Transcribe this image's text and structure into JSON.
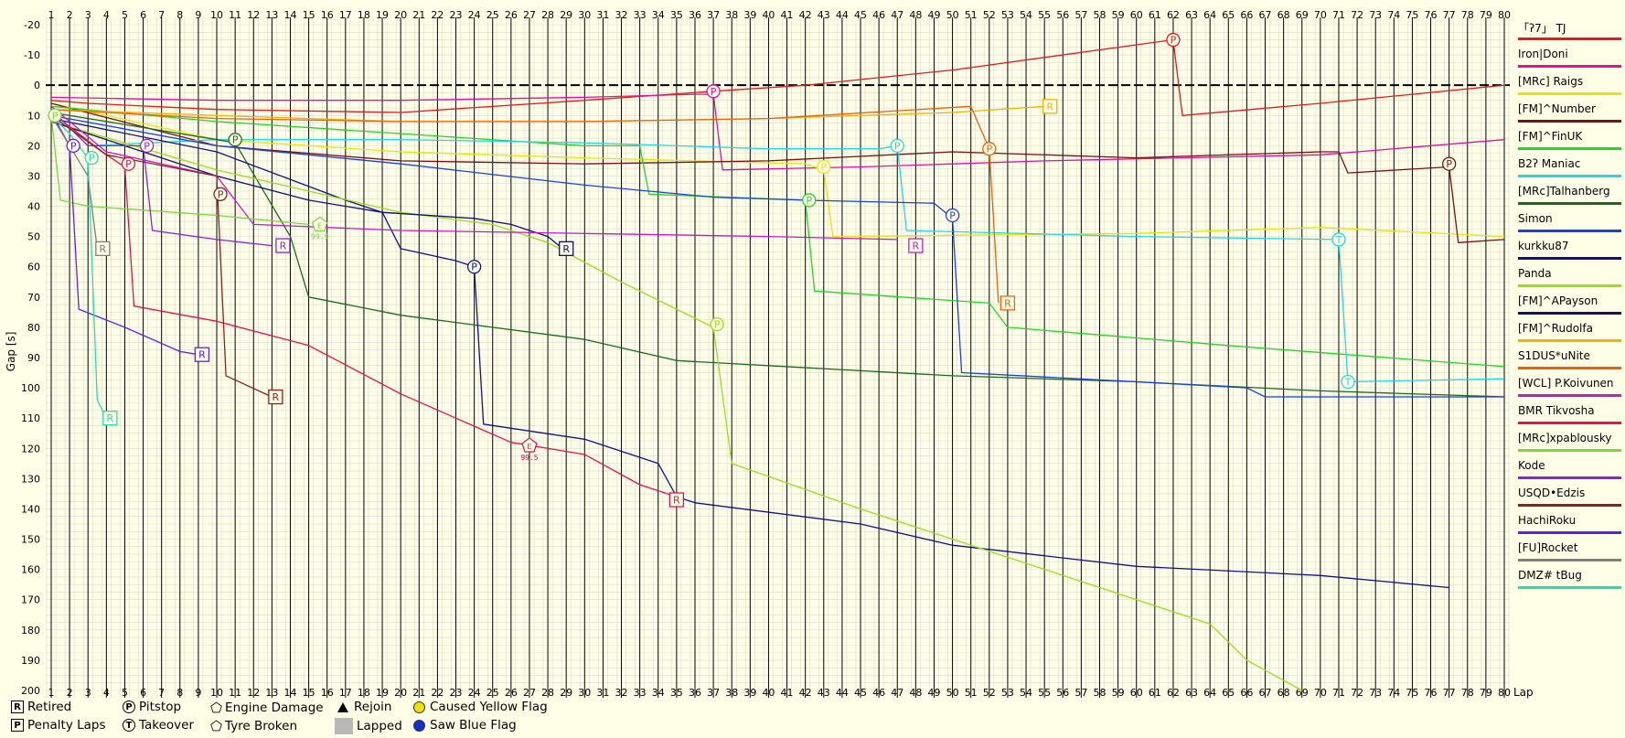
{
  "chart_data": {
    "type": "line",
    "ylabel": "Gap [s]",
    "xlabel": "Lap",
    "xlim": [
      1,
      80
    ],
    "ylim": [
      -20,
      200
    ],
    "y_ticks": [
      -20,
      -10,
      0,
      10,
      20,
      30,
      40,
      50,
      60,
      70,
      80,
      90,
      100,
      110,
      120,
      130,
      140,
      150,
      160,
      170,
      180,
      190,
      200
    ],
    "x_ticks": [
      1,
      2,
      3,
      4,
      5,
      6,
      7,
      8,
      9,
      10,
      11,
      12,
      13,
      14,
      15,
      16,
      17,
      18,
      19,
      20,
      21,
      22,
      23,
      24,
      25,
      26,
      27,
      28,
      29,
      30,
      31,
      32,
      33,
      34,
      35,
      36,
      37,
      38,
      39,
      40,
      41,
      42,
      43,
      44,
      45,
      46,
      47,
      48,
      49,
      50,
      51,
      52,
      53,
      54,
      55,
      56,
      57,
      58,
      59,
      60,
      61,
      62,
      63,
      64,
      65,
      66,
      67,
      68,
      69,
      70,
      71,
      72,
      73,
      74,
      75,
      76,
      77,
      78,
      79,
      80
    ],
    "y_inverted": true,
    "grid": true,
    "legend_position": "right",
    "series": [
      {
        "name": "「ʔ7」 TJ",
        "color": "#e31a1c",
        "points": [
          [
            1,
            5
          ],
          [
            3,
            6
          ],
          [
            10,
            8
          ],
          [
            20,
            9
          ],
          [
            30,
            5
          ],
          [
            37,
            2
          ],
          [
            42,
            0
          ],
          [
            50,
            -5
          ],
          [
            62,
            -15
          ],
          [
            62.5,
            10
          ],
          [
            70,
            6
          ],
          [
            80,
            0
          ]
        ]
      },
      {
        "name": "Iron|Doni",
        "color": "#e0109f",
        "points": [
          [
            1,
            4
          ],
          [
            10,
            5
          ],
          [
            20,
            5
          ],
          [
            30,
            4
          ],
          [
            36,
            3
          ],
          [
            37,
            3
          ],
          [
            37.5,
            28
          ],
          [
            45,
            27
          ],
          [
            55,
            25
          ],
          [
            70,
            23
          ],
          [
            80,
            18
          ]
        ]
      },
      {
        "name": "[MRc] Raigs",
        "color": "#e6e600",
        "points": [
          [
            1,
            6
          ],
          [
            10,
            18
          ],
          [
            20,
            22
          ],
          [
            30,
            24
          ],
          [
            42,
            26
          ],
          [
            43,
            28
          ],
          [
            43.5,
            50
          ],
          [
            60,
            49
          ],
          [
            70,
            47
          ],
          [
            80,
            50
          ]
        ]
      },
      {
        "name": "[FM]^Number",
        "color": "#7a1010",
        "points": [
          [
            1,
            6
          ],
          [
            10,
            20
          ],
          [
            20,
            25
          ],
          [
            30,
            26
          ],
          [
            40,
            25
          ],
          [
            50,
            22
          ],
          [
            60,
            24
          ],
          [
            70,
            22
          ],
          [
            71,
            22
          ],
          [
            71.5,
            29
          ],
          [
            77,
            27
          ],
          [
            77.5,
            52
          ],
          [
            80,
            51
          ]
        ]
      },
      {
        "name": "[FM]^FinUK",
        "color": "#20d820",
        "points": [
          [
            1,
            7
          ],
          [
            10,
            12
          ],
          [
            20,
            16
          ],
          [
            30,
            20
          ],
          [
            33,
            20
          ],
          [
            33.5,
            36
          ],
          [
            42,
            38
          ],
          [
            42.5,
            68
          ],
          [
            52,
            72
          ],
          [
            53,
            80
          ],
          [
            65,
            86
          ],
          [
            80,
            93
          ]
        ]
      },
      {
        "name": "B2ʔ Maniac",
        "color": "#20d8e8",
        "points": [
          [
            1,
            8
          ],
          [
            3,
            20
          ],
          [
            10,
            18
          ],
          [
            20,
            18
          ],
          [
            30,
            19
          ],
          [
            40,
            21
          ],
          [
            46,
            21
          ],
          [
            47,
            20
          ],
          [
            47.5,
            48
          ],
          [
            60,
            50
          ],
          [
            71,
            51
          ],
          [
            71.5,
            98
          ],
          [
            80,
            97
          ]
        ]
      },
      {
        "name": "[MRc]Talhanberg",
        "color": "#1a6a1a",
        "points": [
          [
            1,
            9
          ],
          [
            10,
            18
          ],
          [
            11,
            19
          ],
          [
            14,
            50
          ],
          [
            15,
            70
          ],
          [
            20,
            76
          ],
          [
            30,
            84
          ],
          [
            35,
            91
          ],
          [
            50,
            96
          ],
          [
            60,
            98
          ],
          [
            70,
            101
          ],
          [
            80,
            103
          ]
        ]
      },
      {
        "name": "Simon",
        "color": "#1840e8",
        "points": [
          [
            1,
            10
          ],
          [
            10,
            20
          ],
          [
            20,
            26
          ],
          [
            30,
            33
          ],
          [
            37,
            37
          ],
          [
            42,
            38
          ],
          [
            49,
            39
          ],
          [
            50,
            44
          ],
          [
            50.5,
            95
          ],
          [
            60,
            98
          ],
          [
            66,
            100
          ],
          [
            67,
            103
          ],
          [
            80,
            103
          ]
        ]
      },
      {
        "name": "kurkku87",
        "color": "#10108a",
        "points": [
          [
            1,
            11
          ],
          [
            10,
            22
          ],
          [
            17,
            38
          ],
          [
            19,
            42
          ],
          [
            20,
            54
          ],
          [
            23,
            58
          ],
          [
            24,
            60
          ],
          [
            24.5,
            112
          ],
          [
            30,
            117
          ],
          [
            34,
            125
          ],
          [
            35,
            136
          ],
          [
            36,
            138
          ],
          [
            45,
            145
          ],
          [
            50,
            152
          ],
          [
            60,
            159
          ],
          [
            70,
            162
          ],
          [
            77,
            166
          ]
        ]
      },
      {
        "name": "Panda",
        "color": "#98e010",
        "points": [
          [
            1,
            12
          ],
          [
            10,
            28
          ],
          [
            20,
            42
          ],
          [
            25,
            46
          ],
          [
            28,
            52
          ],
          [
            32,
            65
          ],
          [
            37,
            80
          ],
          [
            38,
            125
          ],
          [
            45,
            140
          ],
          [
            55,
            160
          ],
          [
            64,
            178
          ],
          [
            66,
            190
          ],
          [
            69,
            200
          ]
        ]
      },
      {
        "name": "[FM]^APayson",
        "color": "#101070",
        "points": [
          [
            1,
            12
          ],
          [
            10,
            30
          ],
          [
            15,
            38
          ],
          [
            19,
            42
          ],
          [
            24,
            44
          ],
          [
            26,
            46
          ],
          [
            28,
            50
          ],
          [
            29,
            55
          ]
        ]
      },
      {
        "name": "[FM]^Rudolfa",
        "color": "#f0b400",
        "points": [
          [
            1,
            8
          ],
          [
            10,
            10
          ],
          [
            20,
            12
          ],
          [
            30,
            12
          ],
          [
            40,
            11
          ],
          [
            50,
            9
          ],
          [
            55,
            7
          ]
        ]
      },
      {
        "name": "S1DUS*uNite",
        "color": "#f06000",
        "points": [
          [
            1,
            8
          ],
          [
            10,
            11
          ],
          [
            20,
            12
          ],
          [
            30,
            12
          ],
          [
            40,
            11
          ],
          [
            51,
            7
          ],
          [
            52,
            21
          ],
          [
            52.5,
            72
          ]
        ]
      },
      {
        "name": "[WCL] P.Koivunen",
        "color": "#c818c8",
        "points": [
          [
            1,
            7
          ],
          [
            4,
            22
          ],
          [
            10,
            30
          ],
          [
            12,
            46
          ],
          [
            20,
            48
          ],
          [
            30,
            49
          ],
          [
            40,
            50
          ],
          [
            47,
            51
          ]
        ]
      },
      {
        "name": "BMR Tikvosha",
        "color": "#e8104e",
        "points": [
          [
            1,
            9
          ],
          [
            4,
            23
          ],
          [
            5,
            27
          ],
          [
            5.5,
            73
          ],
          [
            10,
            78
          ],
          [
            15,
            86
          ],
          [
            20,
            102
          ],
          [
            26,
            118
          ],
          [
            30,
            122
          ],
          [
            33,
            132
          ],
          [
            35,
            136
          ]
        ]
      },
      {
        "name": "[MRc]xpablousky",
        "color": "#78d838",
        "points": [
          [
            1,
            10
          ],
          [
            1.5,
            38
          ],
          [
            3,
            40
          ],
          [
            10,
            43
          ],
          [
            15,
            46
          ]
        ]
      },
      {
        "name": "Kode",
        "color": "#9020d8",
        "points": [
          [
            1,
            8
          ],
          [
            3,
            20
          ],
          [
            6,
            20
          ],
          [
            6.5,
            48
          ],
          [
            10,
            51
          ],
          [
            13,
            53
          ]
        ]
      },
      {
        "name": "USQD•Edzis",
        "color": "#8a2020",
        "points": [
          [
            1,
            10
          ],
          [
            4,
            23
          ],
          [
            10,
            30
          ],
          [
            10.5,
            96
          ],
          [
            13,
            103
          ]
        ]
      },
      {
        "name": "HachiRoku",
        "color": "#6020e0",
        "points": [
          [
            1,
            9
          ],
          [
            2,
            20
          ],
          [
            2.5,
            74
          ],
          [
            5,
            80
          ],
          [
            8,
            88
          ],
          [
            9,
            89
          ]
        ]
      },
      {
        "name": "[FU]Rocket",
        "color": "#808080",
        "points": [
          [
            1,
            10
          ],
          [
            2,
            20
          ],
          [
            3,
            30
          ],
          [
            3.5,
            54
          ]
        ]
      },
      {
        "name": "DMZ# tBug",
        "color": "#20e0b0",
        "points": [
          [
            1,
            10
          ],
          [
            2,
            16
          ],
          [
            3,
            24
          ],
          [
            3.5,
            104
          ],
          [
            4,
            110
          ]
        ]
      }
    ],
    "markers": [
      {
        "type": "P",
        "shape": "circle",
        "x": 62,
        "y": -15,
        "series": "「ʔ7」 TJ"
      },
      {
        "type": "P",
        "shape": "circle",
        "x": 37,
        "y": 2,
        "series": "Iron|Doni"
      },
      {
        "type": "P",
        "shape": "circle",
        "x": 11,
        "y": 18,
        "series": "[MRc]Talhanberg"
      },
      {
        "type": "P",
        "shape": "circle",
        "x": 1.2,
        "y": 10,
        "series": "[MRc]xpablousky"
      },
      {
        "type": "P",
        "shape": "circle",
        "x": 2.2,
        "y": 20,
        "series": "HachiRoku"
      },
      {
        "type": "P",
        "shape": "circle",
        "x": 3.2,
        "y": 24,
        "series": "DMZ# tBug"
      },
      {
        "type": "P",
        "shape": "circle",
        "x": 5.2,
        "y": 26,
        "series": "BMR Tikvosha"
      },
      {
        "type": "P",
        "shape": "circle",
        "x": 6.2,
        "y": 20,
        "series": "Kode"
      },
      {
        "type": "P",
        "shape": "circle",
        "x": 10.2,
        "y": 36,
        "series": "USQD•Edzis"
      },
      {
        "type": "P",
        "shape": "circle",
        "x": 24,
        "y": 60,
        "series": "kurkku87"
      },
      {
        "type": "P",
        "shape": "circle",
        "x": 37.2,
        "y": 79,
        "series": "Panda"
      },
      {
        "type": "P",
        "shape": "circle",
        "x": 42.2,
        "y": 38,
        "series": "[FM]^FinUK"
      },
      {
        "type": "P",
        "shape": "circle",
        "x": 47,
        "y": 20,
        "series": "B2ʔ Maniac"
      },
      {
        "type": "P",
        "shape": "circle",
        "x": 50,
        "y": 43,
        "series": "Simon"
      },
      {
        "type": "P",
        "shape": "circle",
        "x": 52,
        "y": 21,
        "series": "S1DUS*uNite"
      },
      {
        "type": "P",
        "shape": "circle",
        "x": 77,
        "y": 26,
        "series": "[FM]^Number"
      },
      {
        "type": "P",
        "shape": "circle",
        "x": 43,
        "y": 27,
        "series": "[MRc] Raigs"
      },
      {
        "type": "T",
        "shape": "circle",
        "x": 71,
        "y": 51,
        "series": "B2ʔ Maniac"
      },
      {
        "type": "T",
        "shape": "circle",
        "x": 71.5,
        "y": 98,
        "series": "B2ʔ Maniac"
      },
      {
        "type": "R",
        "shape": "square",
        "x": 3.8,
        "y": 54,
        "series": "[FU]Rocket"
      },
      {
        "type": "R",
        "shape": "square",
        "x": 4.2,
        "y": 110,
        "series": "DMZ# tBug"
      },
      {
        "type": "R",
        "shape": "square",
        "x": 9.2,
        "y": 89,
        "series": "HachiRoku"
      },
      {
        "type": "R",
        "shape": "square",
        "x": 13.2,
        "y": 103,
        "series": "USQD•Edzis"
      },
      {
        "type": "R",
        "shape": "square",
        "x": 13.6,
        "y": 53,
        "series": "Kode"
      },
      {
        "type": "R",
        "shape": "square",
        "x": 29,
        "y": 54,
        "series": "[FM]^APayson"
      },
      {
        "type": "R",
        "shape": "square",
        "x": 35,
        "y": 137,
        "series": "BMR Tikvosha"
      },
      {
        "type": "R",
        "shape": "square",
        "x": 48,
        "y": 53,
        "series": "[WCL] P.Koivunen"
      },
      {
        "type": "R",
        "shape": "square",
        "x": 53,
        "y": 72,
        "series": "S1DUS*uNite"
      },
      {
        "type": "R",
        "shape": "square",
        "x": 55.3,
        "y": 7,
        "series": "[FM]^Rudolfa"
      },
      {
        "type": "E",
        "shape": "pentagon",
        "x": 15.6,
        "y": 46,
        "label": "99.9",
        "series": "[MRc]xpablousky"
      },
      {
        "type": "E",
        "shape": "pentagon",
        "x": 27,
        "y": 119,
        "label": "99.5",
        "series": "BMR Tikvosha"
      }
    ]
  },
  "legend_keys": {
    "retired": "Retired",
    "pitstop": "Pitstop",
    "engine_damage": "Engine Damage",
    "rejoin": "Rejoin",
    "caused_yellow": "Caused Yellow Flag",
    "penalty_laps": "Penalty Laps",
    "takeover": "Takeover",
    "tyre_broken": "Tyre Broken",
    "lapped": "Lapped",
    "saw_blue": "Saw Blue Flag"
  },
  "colors": {
    "background": "#ffffe8",
    "grid_minor": "#d8d8d8",
    "grid_lap": "#000000",
    "zero_line": "#000000",
    "caused_yellow": "#f0e000",
    "saw_blue": "#1030d0"
  }
}
